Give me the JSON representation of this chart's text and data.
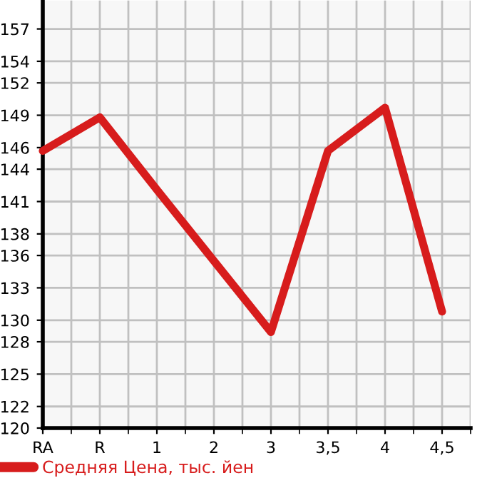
{
  "chart_data": {
    "type": "line",
    "categories": [
      "RA",
      "R",
      "1",
      "2",
      "3",
      "3,5",
      "4",
      "4,5"
    ],
    "series": [
      {
        "name": "Средняя Цена, тыс. йен",
        "color": "#d71c1c",
        "values": [
          145.7,
          148.8,
          142.1,
          135.5,
          128.9,
          145.7,
          149.7,
          130.8
        ]
      }
    ],
    "ylim": [
      120,
      159.64
    ],
    "yticks": [
      120,
      122,
      125,
      128,
      130,
      133,
      136,
      138,
      141,
      144,
      146,
      149,
      152,
      154,
      157
    ],
    "grid": true,
    "legend": "bottom",
    "marker": "none",
    "line_style": "solid"
  }
}
